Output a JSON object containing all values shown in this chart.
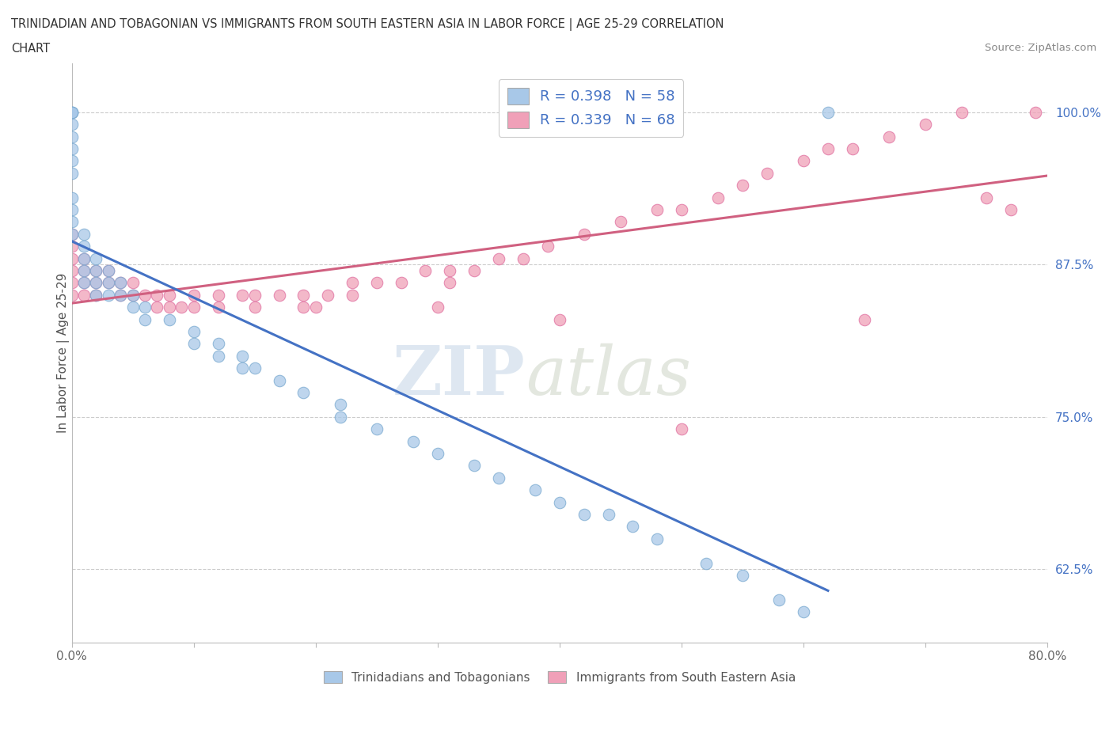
{
  "title_line1": "TRINIDADIAN AND TOBAGONIAN VS IMMIGRANTS FROM SOUTH EASTERN ASIA IN LABOR FORCE | AGE 25-29 CORRELATION",
  "title_line2": "CHART",
  "source_text": "Source: ZipAtlas.com",
  "watermark_zip": "ZIP",
  "watermark_atlas": "atlas",
  "xlabel": "",
  "ylabel": "In Labor Force | Age 25-29",
  "xlim": [
    0.0,
    0.8
  ],
  "ylim": [
    0.565,
    1.04
  ],
  "xticks": [
    0.0,
    0.1,
    0.2,
    0.3,
    0.4,
    0.5,
    0.6,
    0.7,
    0.8
  ],
  "xticklabels": [
    "0.0%",
    "",
    "",
    "",
    "",
    "",
    "",
    "",
    "80.0%"
  ],
  "yticks": [
    0.625,
    0.75,
    0.875,
    1.0
  ],
  "yticklabels": [
    "62.5%",
    "75.0%",
    "87.5%",
    "100.0%"
  ],
  "blue_color": "#a8c8e8",
  "pink_color": "#f0a0b8",
  "blue_edge_color": "#7aaad0",
  "pink_edge_color": "#e070a0",
  "blue_line_color": "#4472c4",
  "pink_line_color": "#d06080",
  "blue_R": 0.398,
  "blue_N": 58,
  "pink_R": 0.339,
  "pink_N": 68,
  "legend_label_blue": "Trinidadians and Tobagonians",
  "legend_label_pink": "Immigrants from South Eastern Asia",
  "blue_x": [
    0.0,
    0.0,
    0.0,
    0.0,
    0.0,
    0.0,
    0.0,
    0.0,
    0.0,
    0.0,
    0.0,
    0.0,
    0.01,
    0.01,
    0.01,
    0.01,
    0.01,
    0.02,
    0.02,
    0.02,
    0.02,
    0.03,
    0.03,
    0.03,
    0.04,
    0.04,
    0.05,
    0.05,
    0.06,
    0.06,
    0.08,
    0.1,
    0.1,
    0.12,
    0.12,
    0.14,
    0.14,
    0.15,
    0.17,
    0.19,
    0.22,
    0.22,
    0.25,
    0.28,
    0.3,
    0.33,
    0.35,
    0.38,
    0.4,
    0.42,
    0.44,
    0.46,
    0.48,
    0.52,
    0.55,
    0.58,
    0.6,
    0.62
  ],
  "blue_y": [
    1.0,
    1.0,
    1.0,
    0.99,
    0.98,
    0.97,
    0.96,
    0.95,
    0.93,
    0.92,
    0.91,
    0.9,
    0.9,
    0.89,
    0.88,
    0.87,
    0.86,
    0.88,
    0.87,
    0.86,
    0.85,
    0.87,
    0.86,
    0.85,
    0.86,
    0.85,
    0.85,
    0.84,
    0.84,
    0.83,
    0.83,
    0.82,
    0.81,
    0.81,
    0.8,
    0.8,
    0.79,
    0.79,
    0.78,
    0.77,
    0.76,
    0.75,
    0.74,
    0.73,
    0.72,
    0.71,
    0.7,
    0.69,
    0.68,
    0.67,
    0.67,
    0.66,
    0.65,
    0.63,
    0.62,
    0.6,
    0.59,
    1.0
  ],
  "pink_x": [
    0.0,
    0.0,
    0.0,
    0.0,
    0.0,
    0.0,
    0.01,
    0.01,
    0.01,
    0.01,
    0.02,
    0.02,
    0.02,
    0.03,
    0.03,
    0.04,
    0.04,
    0.05,
    0.05,
    0.06,
    0.07,
    0.07,
    0.08,
    0.08,
    0.09,
    0.1,
    0.1,
    0.12,
    0.12,
    0.14,
    0.15,
    0.15,
    0.17,
    0.19,
    0.19,
    0.21,
    0.23,
    0.23,
    0.25,
    0.27,
    0.29,
    0.31,
    0.31,
    0.33,
    0.35,
    0.37,
    0.39,
    0.42,
    0.45,
    0.48,
    0.5,
    0.53,
    0.55,
    0.57,
    0.6,
    0.62,
    0.64,
    0.67,
    0.7,
    0.73,
    0.75,
    0.77,
    0.79,
    0.65,
    0.5,
    0.4,
    0.3,
    0.2
  ],
  "pink_y": [
    0.9,
    0.89,
    0.88,
    0.87,
    0.86,
    0.85,
    0.88,
    0.87,
    0.86,
    0.85,
    0.87,
    0.86,
    0.85,
    0.87,
    0.86,
    0.86,
    0.85,
    0.86,
    0.85,
    0.85,
    0.85,
    0.84,
    0.85,
    0.84,
    0.84,
    0.85,
    0.84,
    0.85,
    0.84,
    0.85,
    0.85,
    0.84,
    0.85,
    0.85,
    0.84,
    0.85,
    0.86,
    0.85,
    0.86,
    0.86,
    0.87,
    0.87,
    0.86,
    0.87,
    0.88,
    0.88,
    0.89,
    0.9,
    0.91,
    0.92,
    0.92,
    0.93,
    0.94,
    0.95,
    0.96,
    0.97,
    0.97,
    0.98,
    0.99,
    1.0,
    0.93,
    0.92,
    1.0,
    0.83,
    0.74,
    0.83,
    0.84,
    0.84
  ]
}
